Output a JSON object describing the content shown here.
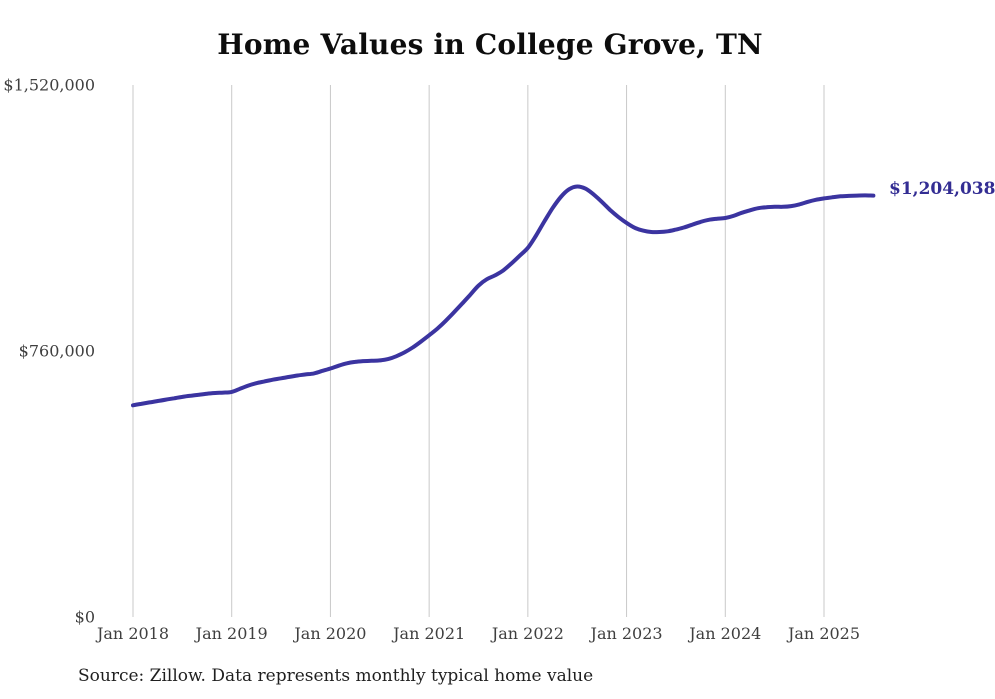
{
  "title": "Home Values in College Grove, TN",
  "source_note": "Source: Zillow. Data represents monthly typical home value",
  "end_label": "$1,204,038",
  "colors": {
    "background": "#ffffff",
    "line": "#3b34a0",
    "end_label": "#332d93",
    "gridline": "#c9c9c9",
    "tick_label": "#3f3f3f",
    "title": "#0d0d0d",
    "source": "#1f1f1f"
  },
  "chart_data": {
    "type": "line",
    "title": "Home Values in College Grove, TN",
    "xlabel": "",
    "ylabel": "",
    "ylim": [
      0,
      1520000
    ],
    "grid": "vertical-only",
    "legend": "none",
    "y_ticks": [
      {
        "value": 0,
        "label": "$0"
      },
      {
        "value": 760000,
        "label": "$760,000"
      },
      {
        "value": 1520000,
        "label": "$1,520,000"
      }
    ],
    "x_tick_labels": [
      "Jan 2018",
      "Jan 2019",
      "Jan 2020",
      "Jan 2021",
      "Jan 2022",
      "Jan 2023",
      "Jan 2024",
      "Jan 2025"
    ],
    "end_annotation": "$1,204,038",
    "x": [
      "Jan 2018",
      "Feb 2018",
      "Mar 2018",
      "Apr 2018",
      "May 2018",
      "Jun 2018",
      "Jul 2018",
      "Aug 2018",
      "Sep 2018",
      "Oct 2018",
      "Nov 2018",
      "Dec 2018",
      "Jan 2019",
      "Feb 2019",
      "Mar 2019",
      "Apr 2019",
      "May 2019",
      "Jun 2019",
      "Jul 2019",
      "Aug 2019",
      "Sep 2019",
      "Oct 2019",
      "Nov 2019",
      "Dec 2019",
      "Jan 2020",
      "Feb 2020",
      "Mar 2020",
      "Apr 2020",
      "May 2020",
      "Jun 2020",
      "Jul 2020",
      "Aug 2020",
      "Sep 2020",
      "Oct 2020",
      "Nov 2020",
      "Dec 2020",
      "Jan 2021",
      "Feb 2021",
      "Mar 2021",
      "Apr 2021",
      "May 2021",
      "Jun 2021",
      "Jul 2021",
      "Aug 2021",
      "Sep 2021",
      "Oct 2021",
      "Nov 2021",
      "Dec 2021",
      "Jan 2022",
      "Feb 2022",
      "Mar 2022",
      "Apr 2022",
      "May 2022",
      "Jun 2022",
      "Jul 2022",
      "Aug 2022",
      "Sep 2022",
      "Oct 2022",
      "Nov 2022",
      "Dec 2022",
      "Jan 2023",
      "Feb 2023",
      "Mar 2023",
      "Apr 2023",
      "May 2023",
      "Jun 2023",
      "Jul 2023",
      "Aug 2023",
      "Sep 2023",
      "Oct 2023",
      "Nov 2023",
      "Dec 2023",
      "Jan 2024",
      "Feb 2024",
      "Mar 2024",
      "Apr 2024",
      "May 2024",
      "Jun 2024",
      "Jul 2024",
      "Aug 2024",
      "Sep 2024",
      "Oct 2024",
      "Nov 2024",
      "Dec 2024",
      "Jan 2025",
      "Feb 2025",
      "Mar 2025",
      "Apr 2025",
      "May 2025",
      "Jun 2025",
      "Jul 2025"
    ],
    "values": [
      605000,
      609000,
      613000,
      617000,
      621000,
      625000,
      629000,
      632000,
      635000,
      638000,
      640000,
      641000,
      643000,
      652000,
      661000,
      668000,
      673000,
      678000,
      682000,
      686000,
      690000,
      693000,
      696000,
      703000,
      710000,
      718000,
      725000,
      729000,
      731000,
      732000,
      733000,
      737000,
      745000,
      756000,
      770000,
      787000,
      805000,
      824000,
      846000,
      870000,
      895000,
      921000,
      947000,
      965000,
      976000,
      990000,
      1010000,
      1032000,
      1055000,
      1090000,
      1130000,
      1168000,
      1200000,
      1222000,
      1230000,
      1224000,
      1207000,
      1186000,
      1163000,
      1143000,
      1126000,
      1112000,
      1104000,
      1100000,
      1100000,
      1102000,
      1107000,
      1113000,
      1121000,
      1129000,
      1135000,
      1138000,
      1140000,
      1146000,
      1155000,
      1162000,
      1168000,
      1171000,
      1172000,
      1172000,
      1174000,
      1179000,
      1186000,
      1192000,
      1196000,
      1199000,
      1202000,
      1203000,
      1204000,
      1204500,
      1204038
    ]
  }
}
